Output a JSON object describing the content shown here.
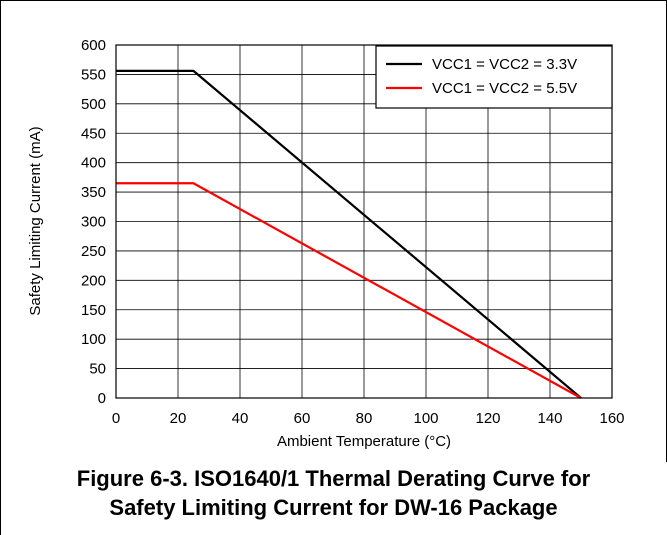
{
  "caption": {
    "line1": "Figure 6-3. ISO1640/1 Thermal Derating Curve for",
    "line2": "Safety Limiting Current for DW-16 Package"
  },
  "chart_data": {
    "type": "line",
    "title": "",
    "xlabel": "Ambient Temperature (°C)",
    "ylabel": "Safety Limiting Current (mA)",
    "xlim": [
      0,
      160
    ],
    "ylim": [
      0,
      600
    ],
    "xticks": [
      0,
      20,
      40,
      60,
      80,
      100,
      120,
      140,
      160
    ],
    "yticks": [
      0,
      50,
      100,
      150,
      200,
      250,
      300,
      350,
      400,
      450,
      500,
      550,
      600
    ],
    "grid": true,
    "legend_position": "top-right",
    "series": [
      {
        "name": "VCC1 = VCC2 = 3.3V",
        "color": "#000000",
        "x": [
          0,
          25,
          150
        ],
        "y": [
          556,
          556,
          0
        ]
      },
      {
        "name": "VCC1 = VCC2 = 5.5V",
        "color": "#ff0000",
        "x": [
          0,
          25,
          150
        ],
        "y": [
          365,
          365,
          0
        ]
      }
    ]
  }
}
